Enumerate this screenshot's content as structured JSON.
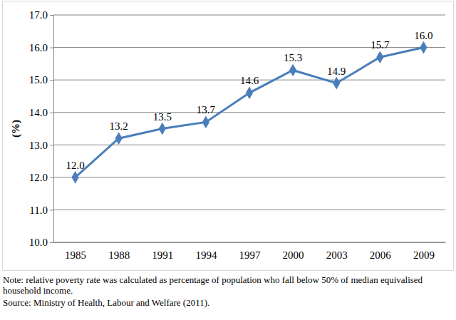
{
  "chart_data": {
    "type": "line",
    "y_label": "(%)",
    "categories": [
      "1985",
      "1988",
      "1991",
      "1994",
      "1997",
      "2000",
      "2003",
      "2006",
      "2009"
    ],
    "values": [
      12,
      13.2,
      13.5,
      13.7,
      14.6,
      15.3,
      14.9,
      15.7,
      16
    ],
    "value_labels": [
      "12.0",
      "13.2",
      "13.5",
      "13.7",
      "14.6",
      "15.3",
      "14.9",
      "15.7",
      "16.0"
    ],
    "color": "#4a7ebb",
    "marker": "diamond",
    "line_style": "solid",
    "data_labels": true,
    "grid": true,
    "ylim": [
      10,
      17
    ],
    "yticks": [
      {
        "value": 10,
        "label": "10.0"
      },
      {
        "value": 11,
        "label": "11.0"
      },
      {
        "value": 12,
        "label": "12.0"
      },
      {
        "value": 13,
        "label": "13.0"
      },
      {
        "value": 14,
        "label": "14.0"
      },
      {
        "value": 15,
        "label": "15.0"
      },
      {
        "value": 16,
        "label": "16.0"
      },
      {
        "value": 17,
        "label": "17.0"
      }
    ],
    "annotations": [
      "Note: relative poverty rate was calculated as percentage of population who fall below 50% of median equivalised household income.",
      "Source: Ministry of Health, Labour and Welfare (2011)."
    ]
  }
}
